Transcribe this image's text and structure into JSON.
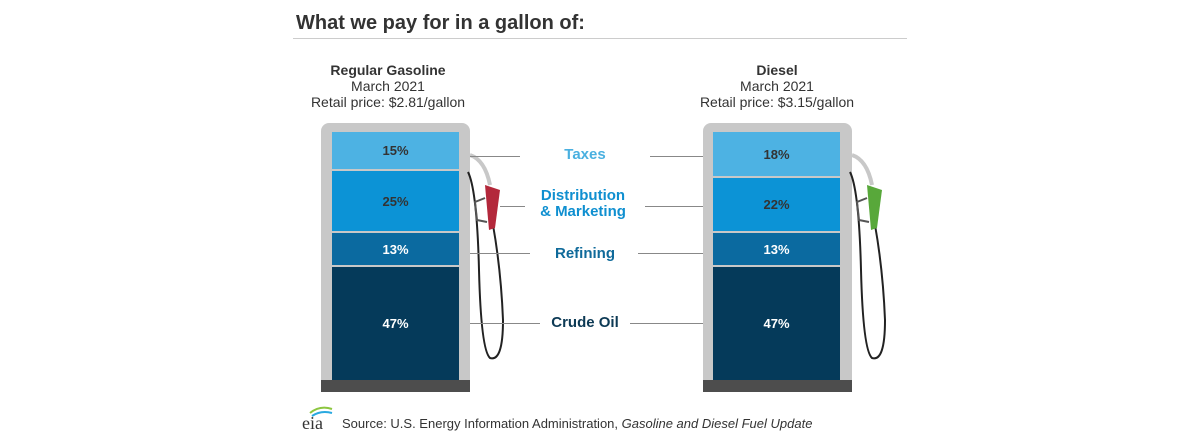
{
  "title": "What we pay for in a gallon of:",
  "gasoline": {
    "name": "Regular Gasoline",
    "date": "March 2021",
    "price": "Retail price: $2.81/gallon",
    "segments": {
      "taxes": "15%",
      "distribution": "25%",
      "refining": "13%",
      "crude": "47%"
    }
  },
  "diesel": {
    "name": "Diesel",
    "date": "March 2021",
    "price": "Retail price: $3.15/gallon",
    "segments": {
      "taxes": "18%",
      "distribution": "22%",
      "refining": "13%",
      "crude": "47%"
    }
  },
  "labels": {
    "taxes": "Taxes",
    "distribution_1": "Distribution",
    "distribution_2": "& Marketing",
    "refining": "Refining",
    "crude": "Crude Oil"
  },
  "chart_data": {
    "type": "bar",
    "stacked": true,
    "title": "What we pay for in a gallon of:",
    "categories": [
      "Regular Gasoline",
      "Diesel"
    ],
    "series": [
      {
        "name": "Taxes",
        "values": [
          15,
          18
        ],
        "color": "#4db2e3"
      },
      {
        "name": "Distribution & Marketing",
        "values": [
          25,
          22
        ],
        "color": "#0c93d6"
      },
      {
        "name": "Refining",
        "values": [
          13,
          13
        ],
        "color": "#0b6aa0"
      },
      {
        "name": "Crude Oil",
        "values": [
          47,
          47
        ],
        "color": "#053a5a"
      }
    ],
    "retail_price": [
      2.81,
      3.15
    ]
  },
  "source": {
    "logo": "eia",
    "prefix": "Source: U.S. Energy Information Administration, ",
    "publication": "Gasoline and Diesel Fuel Update"
  }
}
